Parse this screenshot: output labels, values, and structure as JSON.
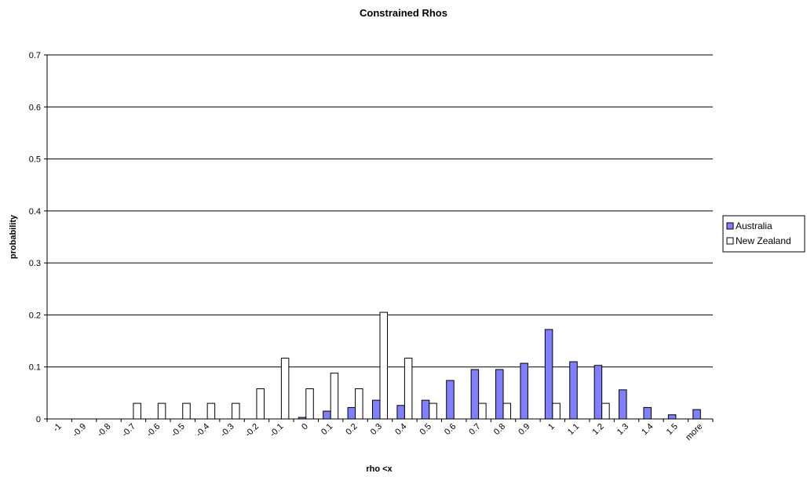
{
  "chart_data": {
    "type": "bar",
    "title": "Constrained Rhos",
    "xlabel": "rho <x",
    "ylabel": "probability",
    "ylim": [
      0,
      0.7
    ],
    "yticks": [
      "0",
      "0.1",
      "0.2",
      "0.3",
      "0.4",
      "0.5",
      "0.6",
      "0.7"
    ],
    "grid": "horizontal",
    "legend_position": "right",
    "categories": [
      "-1",
      "-0.9",
      "-0.8",
      "-0.7",
      "-0.6",
      "-0.5",
      "-0.4",
      "-0.3",
      "-0.2",
      "-0.1",
      "0",
      "0.1",
      "0.2",
      "0.3",
      "0.4",
      "0.5",
      "0.6",
      "0.7",
      "0.8",
      "0.9",
      "1",
      "1.1",
      "1.2",
      "1.3",
      "1.4",
      "1.5",
      "more"
    ],
    "series": [
      {
        "name": "Australia",
        "color": "#8080ff",
        "values": [
          0,
          0,
          0,
          0,
          0,
          0,
          0,
          0,
          0,
          0,
          0.003,
          0.015,
          0.022,
          0.036,
          0.026,
          0.036,
          0.074,
          0.095,
          0.095,
          0.107,
          0.172,
          0.11,
          0.103,
          0.056,
          0.022,
          0.008,
          0.018
        ]
      },
      {
        "name": "New Zealand",
        "color": "#ffffff",
        "values": [
          0,
          0,
          0,
          0.03,
          0.03,
          0.03,
          0.03,
          0.03,
          0.058,
          0.117,
          0.058,
          0.088,
          0.058,
          0.205,
          0.117,
          0.03,
          0,
          0.03,
          0.03,
          0,
          0.03,
          0,
          0.03,
          0,
          0,
          0,
          0
        ]
      }
    ]
  }
}
